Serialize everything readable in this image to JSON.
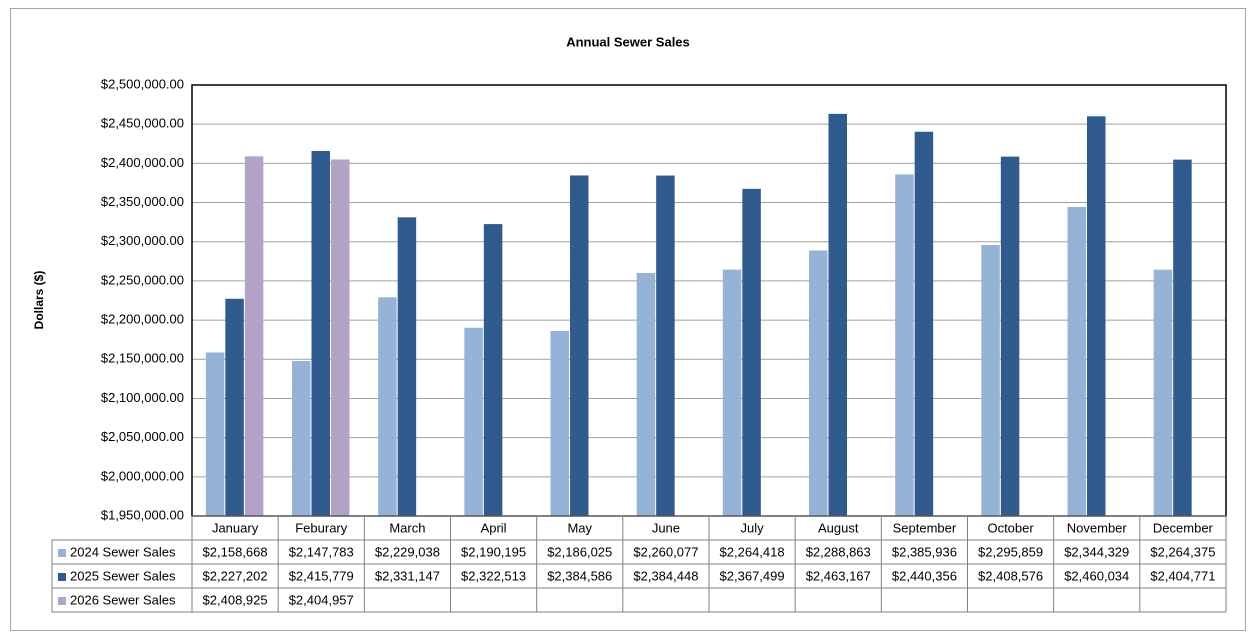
{
  "chart_data": {
    "type": "bar",
    "title": "Annual Sewer Sales",
    "y_label": "Dollars ($)",
    "categories": [
      "January",
      "Feburary",
      "March",
      "April",
      "May",
      "June",
      "July",
      "August",
      "September",
      "October",
      "November",
      "December"
    ],
    "series": [
      {
        "name": "2024 Sewer Sales",
        "color": "#95b3d7",
        "values": [
          2158668,
          2147783,
          2229038,
          2190195,
          2186025,
          2260077,
          2264418,
          2288863,
          2385936,
          2295859,
          2344329,
          2264375
        ],
        "value_labels": [
          "$2,158,668",
          "$2,147,783",
          "$2,229,038",
          "$2,190,195",
          "$2,186,025",
          "$2,260,077",
          "$2,264,418",
          "$2,288,863",
          "$2,385,936",
          "$2,295,859",
          "$2,344,329",
          "$2,264,375"
        ]
      },
      {
        "name": "2025 Sewer Sales",
        "color": "#2f5b8f",
        "values": [
          2227202,
          2415779,
          2331147,
          2322513,
          2384586,
          2384448,
          2367499,
          2463167,
          2440356,
          2408576,
          2460034,
          2404771
        ],
        "value_labels": [
          "$2,227,202",
          "$2,415,779",
          "$2,331,147",
          "$2,322,513",
          "$2,384,586",
          "$2,384,448",
          "$2,367,499",
          "$2,463,167",
          "$2,440,356",
          "$2,408,576",
          "$2,460,034",
          "$2,404,771"
        ]
      },
      {
        "name": "2026 Sewer Sales",
        "color": "#b3a2c7",
        "values": [
          2408925,
          2404957,
          null,
          null,
          null,
          null,
          null,
          null,
          null,
          null,
          null,
          null
        ],
        "value_labels": [
          "$2,408,925",
          "$2,404,957",
          null,
          null,
          null,
          null,
          null,
          null,
          null,
          null,
          null,
          null
        ]
      }
    ],
    "ylim": [
      1950000,
      2500000
    ],
    "yticks": [
      {
        "value": 1950000,
        "label": "$1,950,000.00"
      },
      {
        "value": 2000000,
        "label": "$2,000,000.00"
      },
      {
        "value": 2050000,
        "label": "$2,050,000.00"
      },
      {
        "value": 2100000,
        "label": "$2,100,000.00"
      },
      {
        "value": 2150000,
        "label": "$2,150,000.00"
      },
      {
        "value": 2200000,
        "label": "$2,200,000.00"
      },
      {
        "value": 2250000,
        "label": "$2,250,000.00"
      },
      {
        "value": 2300000,
        "label": "$2,300,000.00"
      },
      {
        "value": 2350000,
        "label": "$2,350,000.00"
      },
      {
        "value": 2400000,
        "label": "$2,400,000.00"
      },
      {
        "value": 2450000,
        "label": "$2,450,000.00"
      },
      {
        "value": 2500000,
        "label": "$2,500,000.00"
      }
    ],
    "grid": true
  }
}
